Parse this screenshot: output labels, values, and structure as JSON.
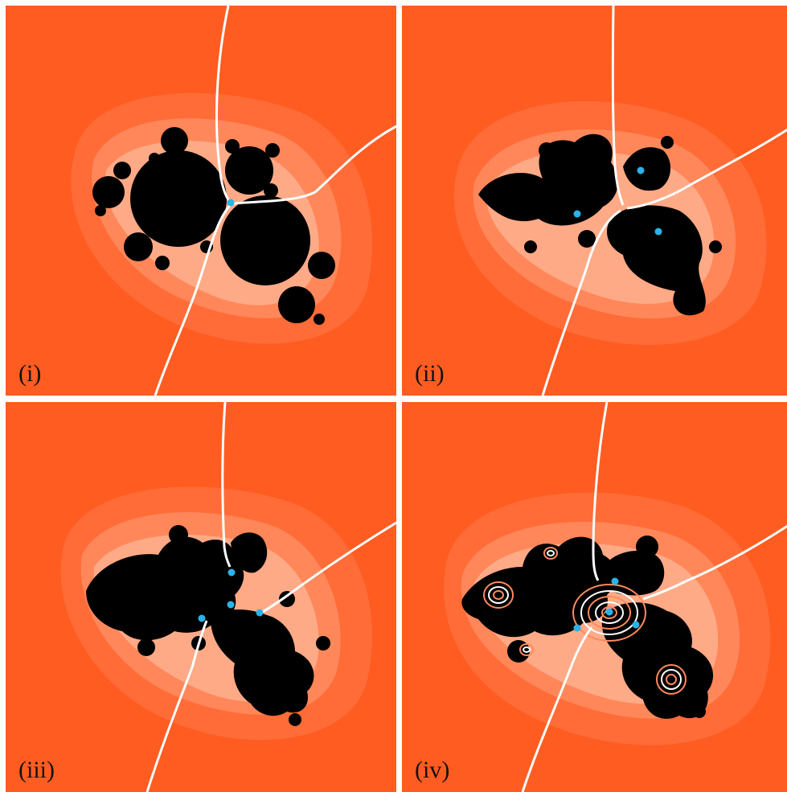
{
  "colors": {
    "background": "#ff5c22",
    "halo_outer": "#ff7a48",
    "halo_mid": "#ff9a72",
    "halo_inner": "#ffc7ad",
    "julia_set": "#000000",
    "rays": "#ffffff",
    "points": "#2ab3e8"
  },
  "panels": [
    {
      "id": "i",
      "label": "(i)"
    },
    {
      "id": "ii",
      "label": "(ii)"
    },
    {
      "id": "iii",
      "label": "(iii)"
    },
    {
      "id": "iv",
      "label": "(iv)"
    }
  ]
}
